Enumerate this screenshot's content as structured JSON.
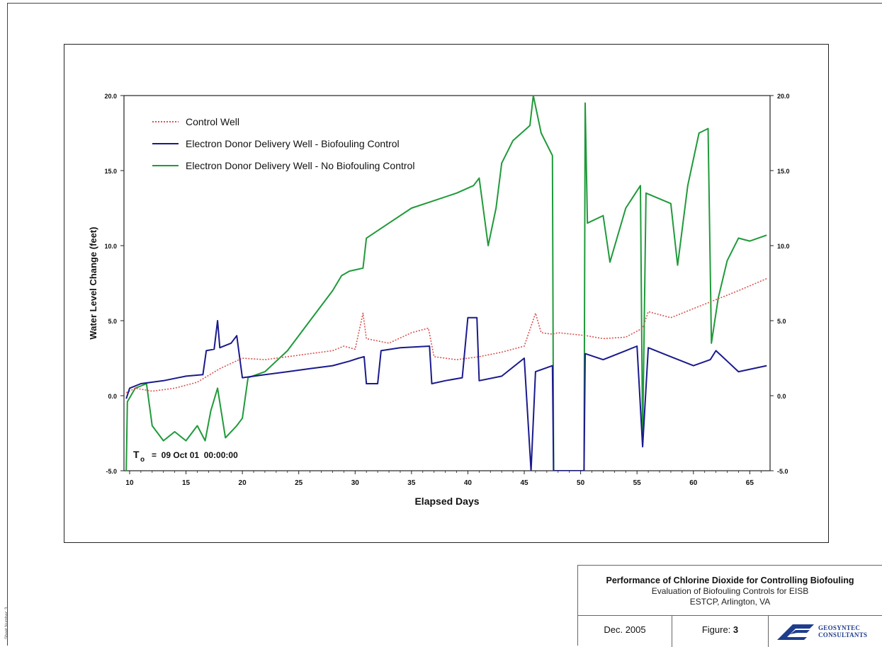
{
  "page": {
    "side_text": "Sheet Number: 3"
  },
  "title_block": {
    "title": "Performance of Chlorine Dioxide for Controlling Biofouling",
    "subtitle": "Evaluation of Biofouling Controls for EISB",
    "location": "ESTCP, Arlington, VA",
    "date": "Dec. 2005",
    "figure_label": "Figure:",
    "figure_number": "3",
    "logo_line1": "GEOSYNTEC",
    "logo_line2": "CONSULTANTS"
  },
  "annotation": {
    "t0_symbol": "T",
    "t0_sub": "o",
    "t0_text": "=  09 Oct 01  00:00:00"
  },
  "colors": {
    "control": "#d9534f",
    "biofouling_control": "#1a1a8c",
    "no_biofouling_control": "#1f9a3a",
    "axis": "#222222"
  },
  "chart_data": {
    "type": "line",
    "title": "",
    "xlabel": "Elapsed Days",
    "ylabel": "Water Level Change (feet)",
    "xlim": [
      9.5,
      66.8
    ],
    "ylim": [
      -5.0,
      20.0
    ],
    "x_ticks": [
      10,
      15,
      20,
      25,
      30,
      35,
      40,
      45,
      50,
      55,
      60,
      65
    ],
    "y_ticks": [
      -5.0,
      0.0,
      5.0,
      10.0,
      15.0,
      20.0
    ],
    "y_tick_labels": [
      "-5.0",
      "0.0",
      "5.0",
      "10.0",
      "15.0",
      "20.0"
    ],
    "legend_placement": "top-left",
    "series": [
      {
        "name": "Control Well",
        "style": "dotted",
        "color": "#d9534f",
        "points": [
          [
            9.7,
            0.2
          ],
          [
            10.5,
            0.5
          ],
          [
            12,
            0.3
          ],
          [
            14,
            0.5
          ],
          [
            16,
            0.9
          ],
          [
            18,
            1.8
          ],
          [
            20,
            2.5
          ],
          [
            22,
            2.4
          ],
          [
            24,
            2.6
          ],
          [
            26,
            2.8
          ],
          [
            28,
            3.0
          ],
          [
            29,
            3.3
          ],
          [
            30,
            3.1
          ],
          [
            30.7,
            5.5
          ],
          [
            31,
            3.8
          ],
          [
            33,
            3.5
          ],
          [
            35,
            4.2
          ],
          [
            36.5,
            4.5
          ],
          [
            37,
            2.6
          ],
          [
            39,
            2.4
          ],
          [
            41,
            2.6
          ],
          [
            43,
            2.9
          ],
          [
            45,
            3.3
          ],
          [
            46,
            5.5
          ],
          [
            46.5,
            4.2
          ],
          [
            47.5,
            4.1
          ],
          [
            48,
            4.2
          ],
          [
            50.5,
            4.0
          ],
          [
            52,
            3.8
          ],
          [
            54,
            3.9
          ],
          [
            55.5,
            4.5
          ],
          [
            56,
            5.6
          ],
          [
            58,
            5.2
          ],
          [
            60,
            5.8
          ],
          [
            62,
            6.4
          ],
          [
            64,
            7.0
          ],
          [
            66.5,
            7.8
          ]
        ]
      },
      {
        "name": "Electron Donor Delivery Well - Biofouling Control",
        "style": "solid",
        "color": "#1a1a8c",
        "points": [
          [
            9.7,
            -0.2
          ],
          [
            10,
            0.5
          ],
          [
            11,
            0.8
          ],
          [
            13,
            1.0
          ],
          [
            15,
            1.3
          ],
          [
            16.5,
            1.4
          ],
          [
            16.8,
            3.0
          ],
          [
            17.5,
            3.1
          ],
          [
            17.8,
            5.0
          ],
          [
            18,
            3.2
          ],
          [
            19,
            3.5
          ],
          [
            19.5,
            4.0
          ],
          [
            20,
            1.2
          ],
          [
            22,
            1.4
          ],
          [
            24,
            1.6
          ],
          [
            26,
            1.8
          ],
          [
            28,
            2.0
          ],
          [
            29.5,
            2.3
          ],
          [
            30.3,
            2.5
          ],
          [
            30.8,
            2.6
          ],
          [
            31,
            0.8
          ],
          [
            32,
            0.8
          ],
          [
            32.3,
            3.0
          ],
          [
            34,
            3.2
          ],
          [
            36.6,
            3.3
          ],
          [
            36.8,
            0.8
          ],
          [
            38,
            1.0
          ],
          [
            39.5,
            1.2
          ],
          [
            40,
            5.2
          ],
          [
            40.8,
            5.2
          ],
          [
            41,
            1.0
          ],
          [
            43,
            1.3
          ],
          [
            45,
            2.5
          ],
          [
            45.6,
            -5.0
          ],
          [
            46,
            1.6
          ],
          [
            47.5,
            2.0
          ],
          [
            47.6,
            -5.0
          ],
          [
            50.3,
            -5.0
          ],
          [
            50.4,
            2.8
          ],
          [
            52,
            2.4
          ],
          [
            54,
            3.0
          ],
          [
            55,
            3.3
          ],
          [
            55.5,
            -3.4
          ],
          [
            56,
            3.2
          ],
          [
            58,
            2.6
          ],
          [
            60,
            2.0
          ],
          [
            61.5,
            2.4
          ],
          [
            62,
            3.0
          ],
          [
            63,
            2.3
          ],
          [
            64,
            1.6
          ],
          [
            66.5,
            2.0
          ]
        ]
      },
      {
        "name": "Electron Donor Delivery Well - No Biofouling Control",
        "style": "solid",
        "color": "#1f9a3a",
        "points": [
          [
            9.7,
            -5.0
          ],
          [
            9.8,
            -0.4
          ],
          [
            10.5,
            0.5
          ],
          [
            11.5,
            0.8
          ],
          [
            12,
            -2.0
          ],
          [
            13,
            -3.0
          ],
          [
            14,
            -2.4
          ],
          [
            15,
            -3.0
          ],
          [
            16,
            -2.0
          ],
          [
            16.7,
            -3.0
          ],
          [
            17.2,
            -1.0
          ],
          [
            17.8,
            0.5
          ],
          [
            18.5,
            -2.8
          ],
          [
            19.5,
            -2.0
          ],
          [
            20,
            -1.5
          ],
          [
            20.5,
            1.2
          ],
          [
            22,
            1.6
          ],
          [
            24,
            3.0
          ],
          [
            26,
            5.0
          ],
          [
            28,
            7.0
          ],
          [
            28.8,
            8.0
          ],
          [
            29.5,
            8.3
          ],
          [
            30.7,
            8.5
          ],
          [
            31,
            10.5
          ],
          [
            33,
            11.5
          ],
          [
            35,
            12.5
          ],
          [
            37,
            13.0
          ],
          [
            39,
            13.5
          ],
          [
            40.5,
            14.0
          ],
          [
            41,
            14.5
          ],
          [
            41.8,
            10.0
          ],
          [
            42.5,
            12.5
          ],
          [
            43,
            15.5
          ],
          [
            44,
            17.0
          ],
          [
            45.5,
            18.0
          ],
          [
            45.8,
            20.0
          ],
          [
            46.5,
            17.5
          ],
          [
            47.5,
            16.0
          ],
          [
            47.6,
            -5.0
          ],
          [
            50.3,
            -5.0
          ],
          [
            50.4,
            19.5
          ],
          [
            50.6,
            11.5
          ],
          [
            52,
            12.0
          ],
          [
            52.6,
            8.9
          ],
          [
            54,
            12.5
          ],
          [
            55.3,
            14.0
          ],
          [
            55.5,
            -3.0
          ],
          [
            55.8,
            13.5
          ],
          [
            58,
            12.8
          ],
          [
            58.6,
            8.7
          ],
          [
            59.5,
            14.0
          ],
          [
            60.5,
            17.5
          ],
          [
            61.3,
            17.8
          ],
          [
            61.6,
            3.5
          ],
          [
            62.2,
            6.5
          ],
          [
            63,
            9.0
          ],
          [
            64,
            10.5
          ],
          [
            65,
            10.3
          ],
          [
            66.5,
            10.7
          ]
        ]
      }
    ]
  }
}
